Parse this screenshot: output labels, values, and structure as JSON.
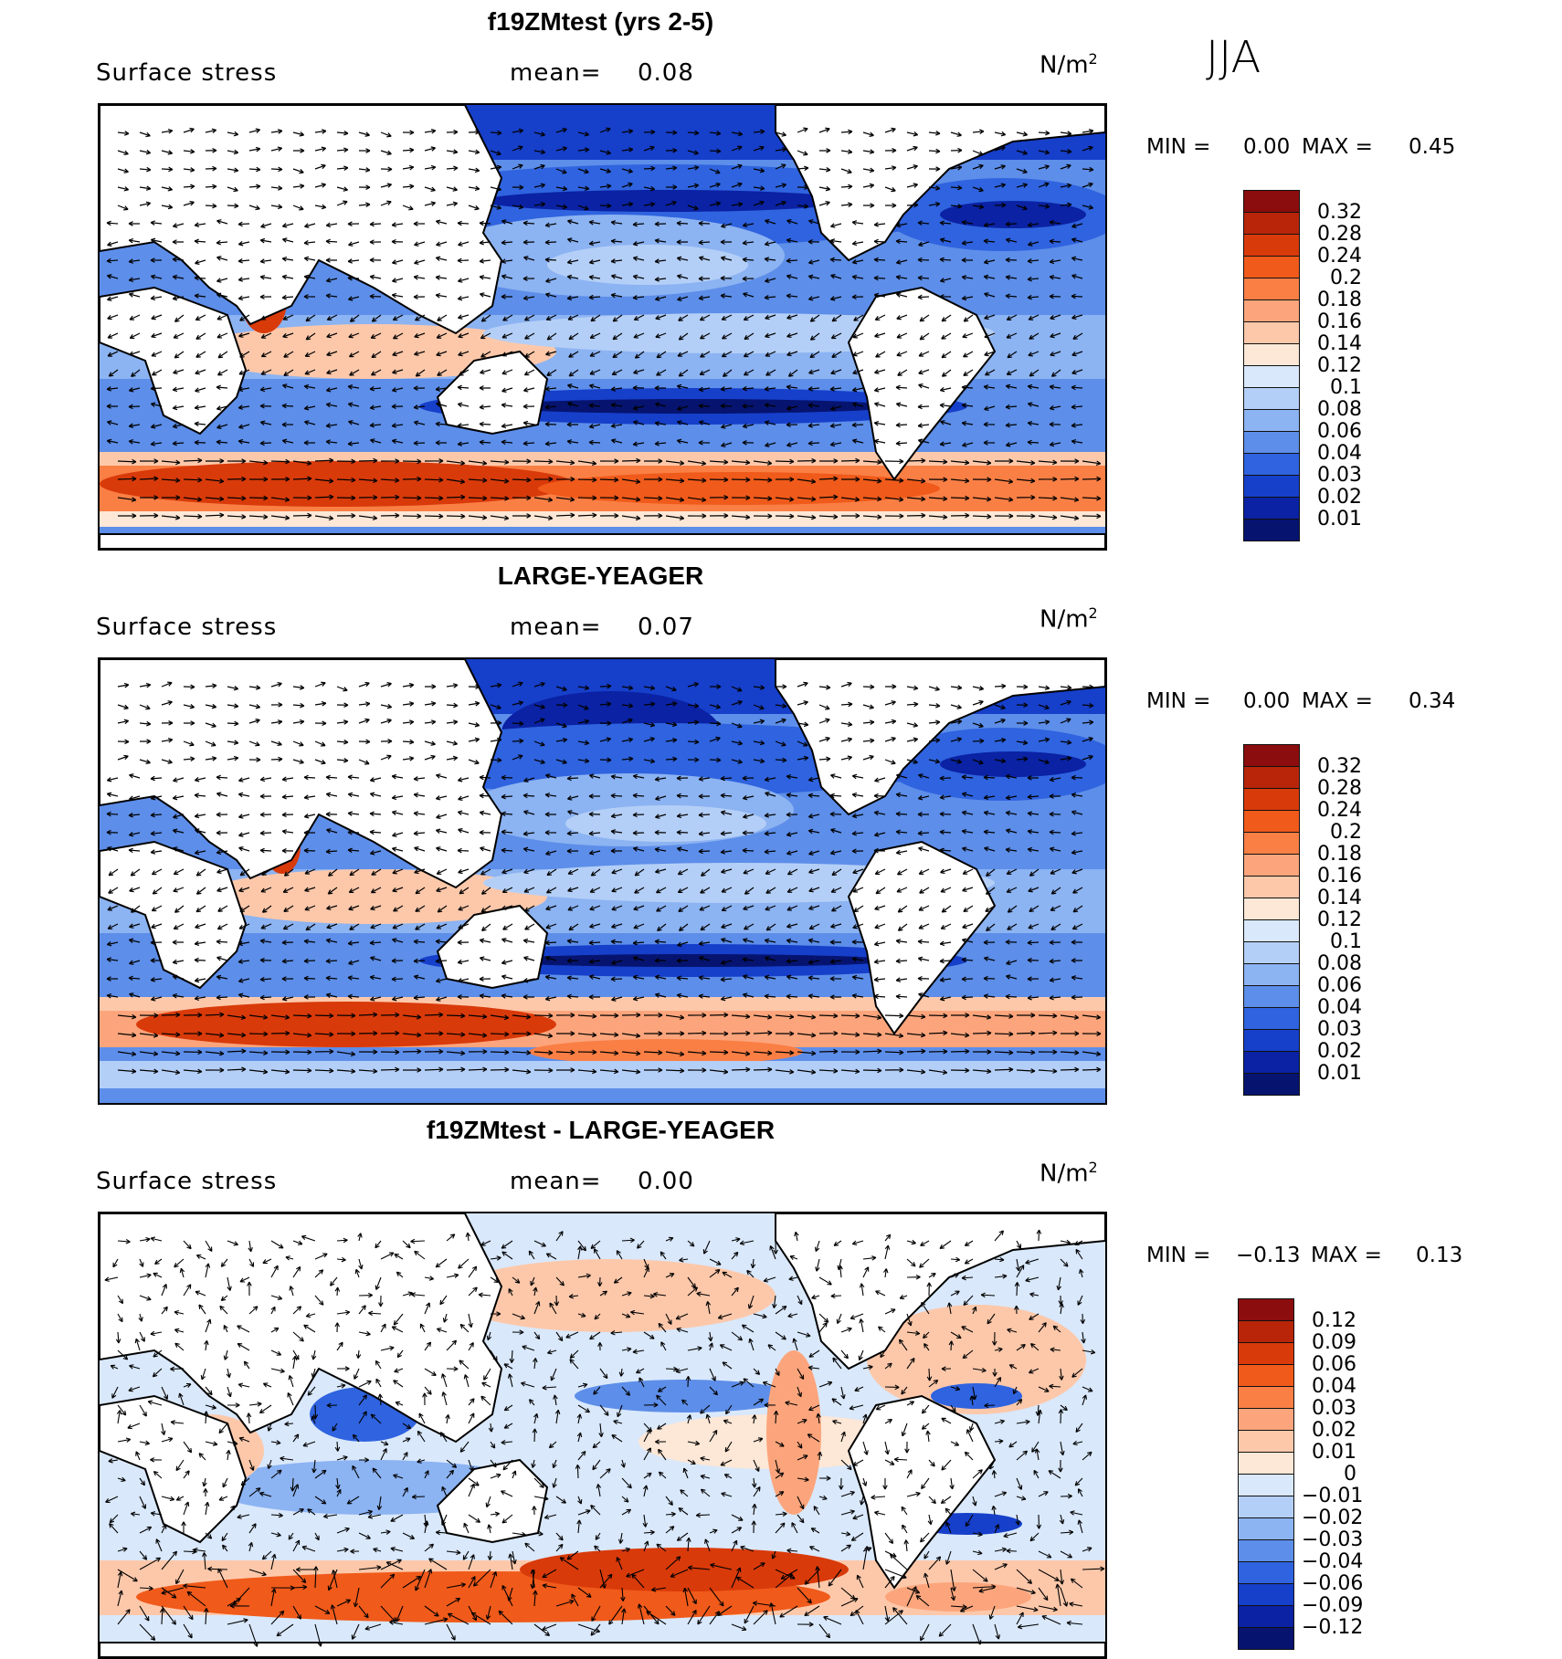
{
  "season": "JJA",
  "panels": [
    {
      "title": "f19ZMtest (yrs 2-5)",
      "variable": "Surface stress",
      "mean_label": "mean=",
      "mean_value": "0.08",
      "units": "N/m",
      "units_sup": "2",
      "min_label": "MIN =",
      "min_value": "0.00",
      "max_label": "MAX =",
      "max_value": "0.45",
      "colorbar": {
        "labels": [
          "0.32",
          "0.28",
          "0.24",
          "0.2",
          "0.18",
          "0.16",
          "0.14",
          "0.12",
          "0.1",
          "0.08",
          "0.06",
          "0.04",
          "0.03",
          "0.02",
          "0.01"
        ],
        "colors": [
          "#8b0d0d",
          "#b82508",
          "#d93a0a",
          "#f05a1a",
          "#fa7f45",
          "#fca57c",
          "#fdc8aa",
          "#fde7d6",
          "#d9e8fb",
          "#b4cff7",
          "#8cb3f2",
          "#5d8ee9",
          "#2f63df",
          "#163fca",
          "#0a22a3",
          "#061470"
        ]
      },
      "chart_data": {
        "type": "heatmap",
        "field": "surface wind stress magnitude with vector arrows",
        "mean": 0.08,
        "min": 0.0,
        "max": 0.45,
        "units": "N/m^2",
        "season": "JJA"
      }
    },
    {
      "title": "LARGE-YEAGER",
      "variable": "Surface stress",
      "mean_label": "mean=",
      "mean_value": "0.07",
      "units": "N/m",
      "units_sup": "2",
      "min_label": "MIN =",
      "min_value": "0.00",
      "max_label": "MAX =",
      "max_value": "0.34",
      "colorbar": {
        "labels": [
          "0.32",
          "0.28",
          "0.24",
          "0.2",
          "0.18",
          "0.16",
          "0.14",
          "0.12",
          "0.1",
          "0.08",
          "0.06",
          "0.04",
          "0.03",
          "0.02",
          "0.01"
        ],
        "colors": [
          "#8b0d0d",
          "#b82508",
          "#d93a0a",
          "#f05a1a",
          "#fa7f45",
          "#fca57c",
          "#fdc8aa",
          "#fde7d6",
          "#d9e8fb",
          "#b4cff7",
          "#8cb3f2",
          "#5d8ee9",
          "#2f63df",
          "#163fca",
          "#0a22a3",
          "#061470"
        ]
      },
      "chart_data": {
        "type": "heatmap",
        "field": "surface wind stress magnitude with vector arrows",
        "mean": 0.07,
        "min": 0.0,
        "max": 0.34,
        "units": "N/m^2",
        "season": "JJA"
      }
    },
    {
      "title": "f19ZMtest - LARGE-YEAGER",
      "variable": "Surface stress",
      "mean_label": "mean=",
      "mean_value": "0.00",
      "units": "N/m",
      "units_sup": "2",
      "min_label": "MIN =",
      "min_value": "−0.13",
      "max_label": "MAX =",
      "max_value": "0.13",
      "colorbar": {
        "labels": [
          "0.12",
          "0.09",
          "0.06",
          "0.04",
          "0.03",
          "0.02",
          "0.01",
          "0",
          "−0.01",
          "−0.02",
          "−0.03",
          "−0.04",
          "−0.06",
          "−0.09",
          "−0.12"
        ],
        "colors": [
          "#8b0d0d",
          "#b82508",
          "#d93a0a",
          "#f05a1a",
          "#fa7f45",
          "#fca57c",
          "#fdc8aa",
          "#fde7d6",
          "#d9e8fb",
          "#b4cff7",
          "#8cb3f2",
          "#5d8ee9",
          "#2f63df",
          "#163fca",
          "#0a22a3",
          "#061470"
        ]
      },
      "chart_data": {
        "type": "heatmap",
        "field": "difference in surface wind stress magnitude with vector arrows",
        "mean": 0.0,
        "min": -0.13,
        "max": 0.13,
        "units": "N/m^2",
        "season": "JJA"
      }
    }
  ]
}
